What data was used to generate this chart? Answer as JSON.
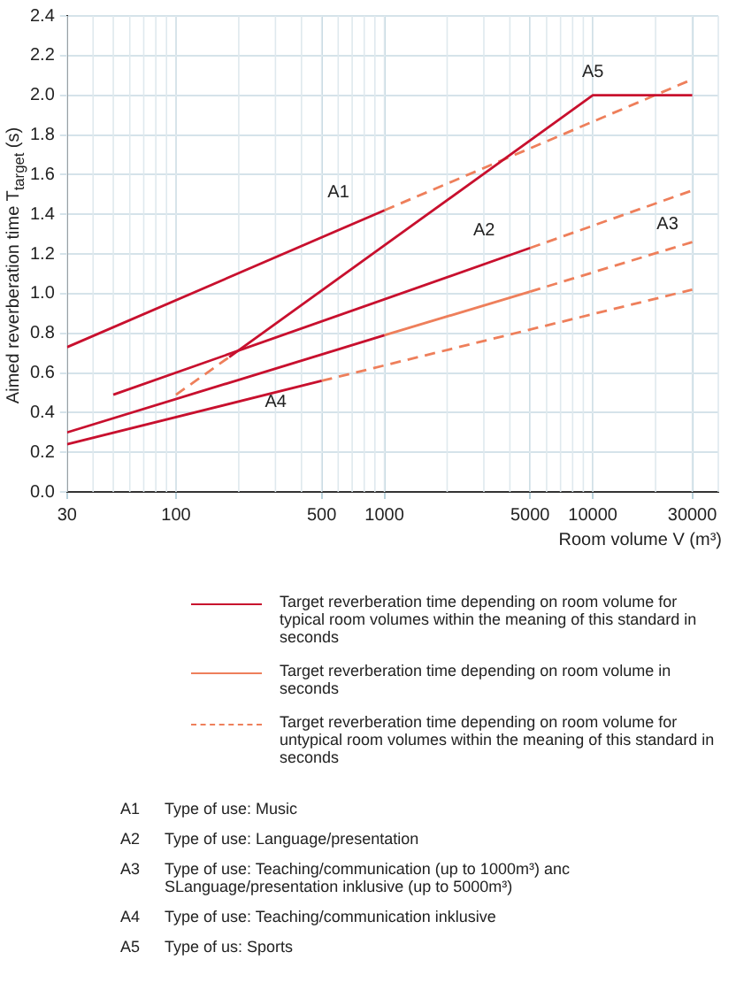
{
  "chart_data": {
    "type": "line",
    "xlabel": "Room volume  V (m³)",
    "ylabel": "Aimed reverberation time  T$_{target}$ (s)",
    "log": "x",
    "grid": true,
    "legend": "bottom",
    "marker": "none",
    "xlim": [
      30,
      40000
    ],
    "xticks": [
      30,
      100,
      500,
      1000,
      5000,
      10000,
      30000
    ],
    "ylim": [
      0,
      2.4
    ],
    "yticks": [
      {
        "value": 0,
        "label": "0.0"
      },
      {
        "value": 0.2,
        "label": "0.2"
      },
      {
        "value": 0.4,
        "label": "0.4"
      },
      {
        "value": 0.6,
        "label": "0.6"
      },
      {
        "value": 0.8,
        "label": "0.8"
      },
      {
        "value": 1,
        "label": "1.0"
      },
      {
        "value": 1.2,
        "label": "1.2"
      },
      {
        "value": 1.4,
        "label": "1.4"
      },
      {
        "value": 1.6,
        "label": "1.6"
      },
      {
        "value": 1.8,
        "label": "1.8"
      },
      {
        "value": 2,
        "label": "2.0"
      },
      {
        "value": 2.2,
        "label": "2.2"
      },
      {
        "value": 2.4,
        "label": "2.4"
      }
    ],
    "series": [
      {
        "name": "Target reverberation time depending on room volume for typical room volumes within the meaning of this standard in seconds",
        "color": "#c8102e",
        "line_style": "solid",
        "x": [
          30,
          1000
        ],
        "values": [
          0.73,
          1.42
        ]
      },
      {
        "color": "#c8102e",
        "line_style": "solid",
        "x": [
          50,
          5000
        ],
        "values": [
          0.49,
          1.23
        ]
      },
      {
        "color": "#c8102e",
        "line_style": "solid",
        "x": [
          30,
          1000
        ],
        "values": [
          0.3,
          0.79
        ]
      },
      {
        "color": "#c8102e",
        "line_style": "solid",
        "x": [
          30,
          500
        ],
        "values": [
          0.24,
          0.56
        ]
      },
      {
        "color": "#c8102e",
        "line_style": "solid",
        "x": [
          180,
          10000,
          30000
        ],
        "values": [
          0.68,
          2.0,
          2.0
        ]
      },
      {
        "name": "Target reverberation time depending on room volume in seconds",
        "color": "#ee7f5b",
        "line_style": "solid",
        "x": [
          1000,
          5000
        ],
        "values": [
          0.79,
          1.01
        ]
      },
      {
        "name": "Target reverberation time depending on room volume for untypical room volumes within the meaning of this standard in seconds",
        "color": "#ee7f5b",
        "line_style": "dashed",
        "x": [
          1000,
          30000
        ],
        "values": [
          1.42,
          2.08
        ]
      },
      {
        "color": "#ee7f5b",
        "line_style": "dashed",
        "x": [
          5000,
          30000
        ],
        "values": [
          1.23,
          1.52
        ]
      },
      {
        "color": "#ee7f5b",
        "line_style": "dashed",
        "x": [
          5000,
          30000
        ],
        "values": [
          1.01,
          1.26
        ]
      },
      {
        "color": "#ee7f5b",
        "line_style": "dashed",
        "x": [
          500,
          30000
        ],
        "values": [
          0.56,
          1.02
        ]
      },
      {
        "color": "#ee7f5b",
        "line_style": "dashed",
        "x": [
          100,
          180
        ],
        "values": [
          0.49,
          0.68
        ]
      }
    ],
    "annotations": [
      {
        "text": "A1",
        "x": 1000,
        "y": 1.42
      },
      {
        "text": "A2",
        "x": 5000,
        "y": 1.23
      },
      {
        "text": "A3",
        "x": 30000,
        "y": 1.26
      },
      {
        "text": "A4",
        "x": 500,
        "y": 0.56
      },
      {
        "text": "A5",
        "x": 10000,
        "y": 2.0
      },
      "A1 Type of use: Music",
      "A2 Type of use: Language/presentation",
      "A3 Type of use: Teaching/communication (up to 1000m³) anc SLanguage/presentation inklusive (up to  5000m³)",
      "A4 Type of use: Teaching/communication inklusive",
      "A5 Type of us: Sports"
    ]
  }
}
